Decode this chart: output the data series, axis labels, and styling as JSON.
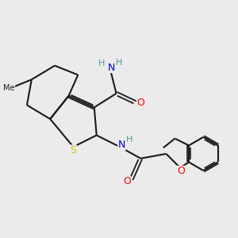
{
  "background_color": "#ebebeb",
  "bond_color": "#1a1a1a",
  "atom_colors": {
    "N": "#0000cc",
    "O": "#ff0000",
    "S": "#cccc00",
    "H": "#4a9a9a",
    "C": "#1a1a1a"
  },
  "figsize": [
    3.0,
    3.0
  ],
  "dpi": 100
}
